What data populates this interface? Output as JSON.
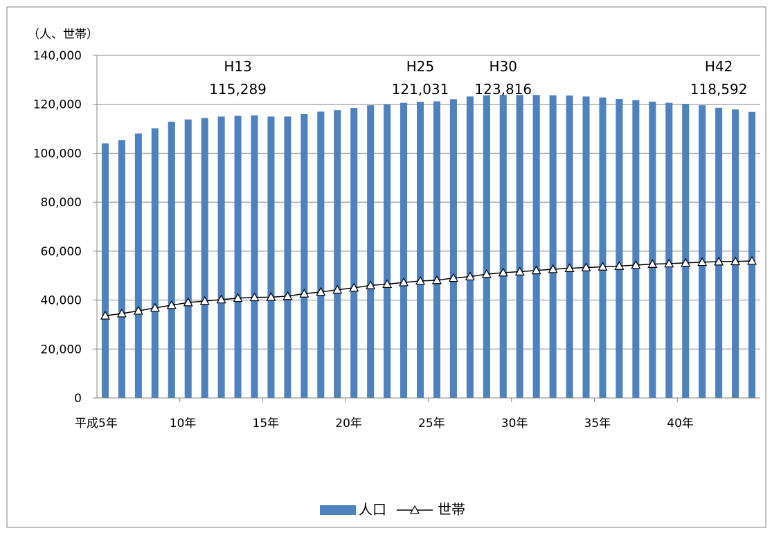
{
  "chart_data": {
    "type": "bar",
    "y_unit_label": "（人、世帯）",
    "ylim": [
      0,
      140000
    ],
    "y_ticks": [
      "0",
      "20,000",
      "40,000",
      "60,000",
      "80,000",
      "100,000",
      "120,000",
      "140,000"
    ],
    "y_tick_values": [
      0,
      20000,
      40000,
      60000,
      80000,
      100000,
      120000,
      140000
    ],
    "x_tick_labels": [
      {
        "index": 0,
        "label": "平成5年"
      },
      {
        "index": 5,
        "label": "10年"
      },
      {
        "index": 10,
        "label": "15年"
      },
      {
        "index": 15,
        "label": "20年"
      },
      {
        "index": 20,
        "label": "25年"
      },
      {
        "index": 25,
        "label": "30年"
      },
      {
        "index": 30,
        "label": "35年"
      },
      {
        "index": 35,
        "label": "40年"
      }
    ],
    "grid": "horizontal",
    "legend_position": "bottom",
    "series": [
      {
        "name": "人口",
        "type": "bar",
        "color": "#4f81bd",
        "values": [
          104000,
          105400,
          108100,
          110200,
          112900,
          113800,
          114400,
          115000,
          115289,
          115500,
          115000,
          115000,
          116000,
          117000,
          117600,
          118500,
          119600,
          120000,
          120600,
          121031,
          121200,
          122100,
          123200,
          123700,
          123816,
          123800,
          123800,
          123700,
          123600,
          123200,
          122800,
          122200,
          121700,
          121100,
          120600,
          120200,
          119600,
          118592,
          117900,
          116900
        ]
      },
      {
        "name": "世帯",
        "type": "line",
        "color": "#000000",
        "marker": "triangle",
        "values": [
          33600,
          34500,
          35600,
          36800,
          37900,
          39000,
          39600,
          40200,
          40800,
          41100,
          41200,
          41600,
          42600,
          43300,
          44200,
          45000,
          46000,
          46500,
          47200,
          47800,
          48100,
          49000,
          49600,
          50600,
          51200,
          51600,
          52100,
          52600,
          53000,
          53300,
          53600,
          53900,
          54300,
          54700,
          54900,
          55200,
          55500,
          55700,
          55800,
          56000
        ]
      }
    ],
    "annotations": [
      {
        "index": 8,
        "label": "H13",
        "value": "115,289"
      },
      {
        "index": 19,
        "label": "H25",
        "value": "121,031"
      },
      {
        "index": 24,
        "label": "H30",
        "value": "123,816"
      },
      {
        "index": 37,
        "label": "H42",
        "value": "118,592"
      }
    ]
  }
}
